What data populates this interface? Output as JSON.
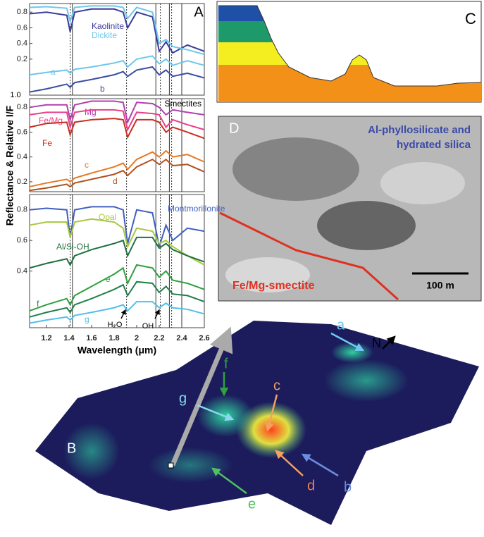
{
  "chart_data": [
    {
      "type": "line",
      "panel_label": "A",
      "xlim": [
        1.05,
        2.6
      ],
      "ylim": [
        -0.26,
        0.91
      ],
      "yticks": [
        0.2,
        0.4,
        0.6,
        0.8
      ],
      "vlines": [
        1.41,
        1.43,
        1.91,
        2.17,
        2.21,
        2.29,
        2.31,
        2.4
      ],
      "annotations": [
        "1.0"
      ],
      "x": [
        1.05,
        1.2,
        1.38,
        1.41,
        1.45,
        1.6,
        1.8,
        1.88,
        1.92,
        2.0,
        2.14,
        2.2,
        2.26,
        2.32,
        2.45,
        2.6
      ],
      "series": [
        {
          "name": "Kaolinite",
          "color": "#3c3c9c",
          "values": [
            0.78,
            0.8,
            0.76,
            0.55,
            0.8,
            0.84,
            0.84,
            0.8,
            0.6,
            0.8,
            0.74,
            0.3,
            0.42,
            0.28,
            0.38,
            0.3
          ]
        },
        {
          "name": "Dickite",
          "color": "#6cc8ec",
          "values": [
            0.86,
            0.87,
            0.85,
            0.68,
            0.86,
            0.88,
            0.88,
            0.86,
            0.72,
            0.86,
            0.8,
            0.4,
            0.45,
            0.36,
            0.32,
            0.26
          ]
        },
        {
          "name": "a",
          "color": "#6cc8ec",
          "values": [
            0.0,
            0.03,
            0.06,
            0.02,
            0.07,
            0.1,
            0.15,
            0.18,
            0.1,
            0.2,
            0.24,
            0.14,
            0.2,
            0.12,
            0.18,
            0.12
          ]
        },
        {
          "name": "b",
          "color": "#3c4ca0",
          "values": [
            -0.22,
            -0.18,
            -0.12,
            -0.16,
            -0.1,
            -0.06,
            0.0,
            0.04,
            -0.02,
            0.06,
            0.1,
            0.0,
            0.06,
            -0.02,
            0.02,
            -0.04
          ]
        }
      ]
    },
    {
      "type": "line",
      "title": "Smectites",
      "y_label": "Reflectance & Relative I/F",
      "xlim": [
        1.05,
        2.6
      ],
      "ylim": [
        0.12,
        0.87
      ],
      "yticks": [
        0.2,
        0.4,
        0.6,
        0.8
      ],
      "vlines": [
        1.41,
        1.43,
        1.91,
        2.17,
        2.21,
        2.29,
        2.31,
        2.4
      ],
      "x": [
        1.05,
        1.2,
        1.38,
        1.41,
        1.45,
        1.6,
        1.8,
        1.88,
        1.92,
        2.0,
        2.14,
        2.2,
        2.26,
        2.32,
        2.45,
        2.6
      ],
      "series": [
        {
          "name": "Mg",
          "color": "#b040b0",
          "values": [
            0.8,
            0.82,
            0.82,
            0.7,
            0.82,
            0.85,
            0.85,
            0.84,
            0.68,
            0.84,
            0.83,
            0.8,
            0.74,
            0.78,
            0.76,
            0.74
          ]
        },
        {
          "name": "Fe/Mg",
          "color": "#e8408a",
          "values": [
            0.74,
            0.76,
            0.76,
            0.64,
            0.76,
            0.78,
            0.78,
            0.77,
            0.62,
            0.76,
            0.75,
            0.74,
            0.64,
            0.7,
            0.66,
            0.62
          ]
        },
        {
          "name": "Fe",
          "color": "#c83020",
          "values": [
            0.64,
            0.67,
            0.68,
            0.58,
            0.68,
            0.7,
            0.71,
            0.7,
            0.56,
            0.7,
            0.7,
            0.68,
            0.6,
            0.64,
            0.6,
            0.55
          ]
        },
        {
          "name": "c",
          "color": "#e87820",
          "values": [
            0.16,
            0.19,
            0.22,
            0.2,
            0.23,
            0.27,
            0.32,
            0.35,
            0.3,
            0.38,
            0.44,
            0.4,
            0.45,
            0.4,
            0.42,
            0.36
          ]
        },
        {
          "name": "d",
          "color": "#b05020",
          "values": [
            0.13,
            0.15,
            0.18,
            0.16,
            0.19,
            0.22,
            0.26,
            0.29,
            0.25,
            0.32,
            0.38,
            0.34,
            0.38,
            0.33,
            0.34,
            0.28
          ]
        }
      ]
    },
    {
      "type": "line",
      "x_label": "Wavelength (μm)",
      "xlim": [
        1.05,
        2.6
      ],
      "xticks": [
        1.2,
        1.4,
        1.6,
        1.8,
        2.0,
        2.2,
        2.4,
        2.6
      ],
      "ylim": [
        0.03,
        0.9
      ],
      "yticks": [
        0.4,
        0.6,
        0.8
      ],
      "vlines": [
        1.41,
        1.43,
        1.91,
        2.17,
        2.21,
        2.29,
        2.31,
        2.4
      ],
      "annotations": [
        "H₂O",
        "OH"
      ],
      "x": [
        1.05,
        1.2,
        1.38,
        1.41,
        1.45,
        1.6,
        1.8,
        1.88,
        1.92,
        2.0,
        2.14,
        2.2,
        2.26,
        2.32,
        2.45,
        2.6
      ],
      "series": [
        {
          "name": "Montmorillonite",
          "color": "#4060c0",
          "values": [
            0.8,
            0.81,
            0.8,
            0.62,
            0.8,
            0.82,
            0.82,
            0.8,
            0.58,
            0.8,
            0.78,
            0.56,
            0.7,
            0.6,
            0.68,
            0.66
          ]
        },
        {
          "name": "Opal",
          "color": "#a8c840",
          "values": [
            0.7,
            0.72,
            0.72,
            0.62,
            0.72,
            0.74,
            0.72,
            0.68,
            0.56,
            0.68,
            0.66,
            0.58,
            0.6,
            0.56,
            0.5,
            0.44
          ]
        },
        {
          "name": "Al/Si-OH",
          "color": "#207040",
          "values": [
            0.42,
            0.45,
            0.48,
            0.44,
            0.5,
            0.54,
            0.58,
            0.6,
            0.5,
            0.62,
            0.62,
            0.55,
            0.58,
            0.54,
            0.5,
            0.46
          ]
        },
        {
          "name": "e",
          "color": "#30a040",
          "values": [
            0.14,
            0.18,
            0.22,
            0.18,
            0.24,
            0.3,
            0.38,
            0.42,
            0.32,
            0.44,
            0.42,
            0.36,
            0.4,
            0.34,
            0.32,
            0.28
          ]
        },
        {
          "name": "f",
          "color": "#208048",
          "values": [
            0.1,
            0.13,
            0.16,
            0.13,
            0.18,
            0.22,
            0.28,
            0.31,
            0.24,
            0.33,
            0.32,
            0.26,
            0.3,
            0.25,
            0.24,
            0.2
          ]
        },
        {
          "name": "g",
          "color": "#50c0e8",
          "values": [
            0.06,
            0.08,
            0.1,
            0.08,
            0.11,
            0.13,
            0.16,
            0.18,
            0.14,
            0.2,
            0.2,
            0.16,
            0.19,
            0.16,
            0.15,
            0.12
          ]
        }
      ]
    }
  ],
  "panel_b": {
    "label": "B",
    "north": "N",
    "pointers": [
      "a",
      "b",
      "c",
      "d",
      "e",
      "f",
      "g"
    ]
  },
  "panel_c": {
    "label": "C"
  },
  "panel_d": {
    "label": "D",
    "unit_a": "Al-phyllosilicate and",
    "unit_a2": "hydrated silica",
    "unit_b": "Fe/Mg-smectite",
    "scale": "100 m"
  }
}
